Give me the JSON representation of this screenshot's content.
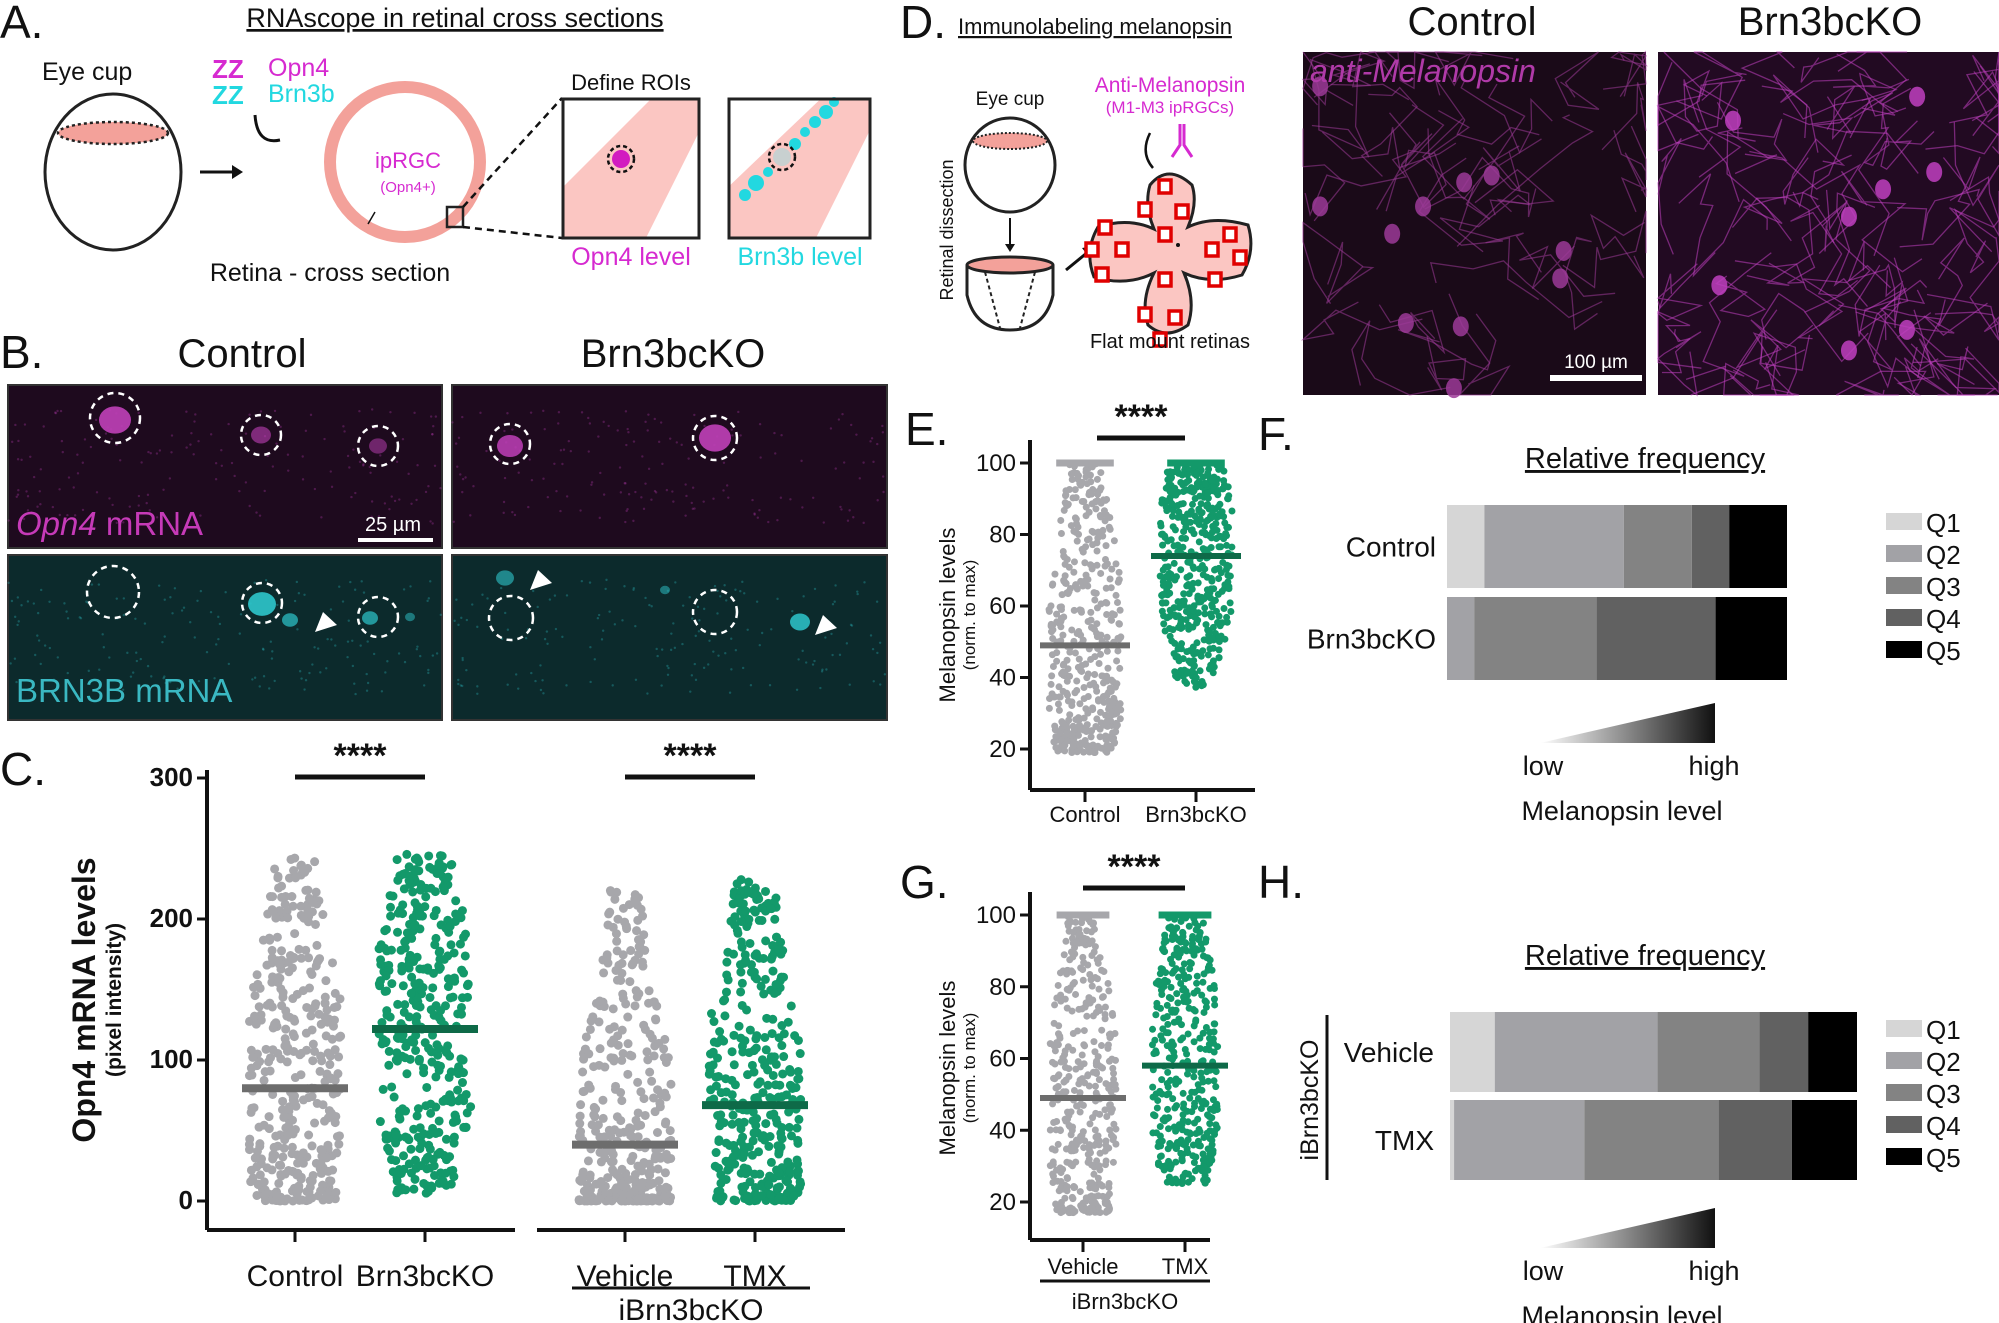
{
  "colors": {
    "control": "#a7a7ab",
    "control_median": "#6d6d6d",
    "ko": "#13996a",
    "ko_median": "#0e6a48",
    "magenta": "#d62ad0",
    "cyan": "#22d8e0",
    "salmon": "#f3a19a",
    "roi_red": "#e00000"
  },
  "panelA": {
    "label": "A.",
    "title": "RNAscope in retinal cross sections",
    "eye_cup": "Eye cup",
    "probe_opn4": "Opn4",
    "probe_brn3b": "Brn3b",
    "probe_glyph": "ZZ",
    "iprgc": "ipRGC",
    "iprgc_sub": "(Opn4+)",
    "retina": "Retina - cross section",
    "define_rois": "Define ROIs",
    "opn4_level": "Opn4 level",
    "brn3b_level": "Brn3b level"
  },
  "panelB": {
    "label": "B.",
    "col_control": "Control",
    "col_ko": "Brn3bcKO",
    "opn4_italic": "Opn4",
    "opn4_rest": " mRNA",
    "brn3b": "BRN3B mRNA",
    "scalebar": "25 µm"
  },
  "panelD": {
    "label": "D.",
    "title": "Immunolabeling melanopsin",
    "eye_cup": "Eye cup",
    "retinal_dissection": "Retinal dissection",
    "antibody": "Anti-Melanopsin",
    "antibody_sub": "(M1-M3 ipRGCs)",
    "flat_mount": "Flat mount retinas",
    "col_control": "Control",
    "col_ko": "Brn3bcKO",
    "stain": "anti-Melanopsin",
    "scalebar": "100 µm"
  },
  "chart_data": [
    {
      "panel": "C.",
      "type": "scatter",
      "ylabel": "Opn4 mRNA levels",
      "ylabel_sub": "(pixel intensity)",
      "ylim": [
        0,
        300
      ],
      "yticks": [
        "0",
        "100",
        "200",
        "300"
      ],
      "groups": [
        {
          "category": "Control",
          "median": 80,
          "min": 0,
          "max": 245,
          "color": "control"
        },
        {
          "category": "Brn3bcKO",
          "median": 122,
          "min": 5,
          "max": 246,
          "color": "ko"
        },
        {
          "category": "Vehicle",
          "median": 40,
          "min": 0,
          "max": 226,
          "color": "control",
          "group": "iBrn3bcKO"
        },
        {
          "category": "TMX",
          "median": 68,
          "min": 0,
          "max": 228,
          "color": "ko",
          "group": "iBrn3bcKO"
        }
      ],
      "group_label": "iBrn3bcKO",
      "significance": [
        "****",
        "****"
      ]
    },
    {
      "panel": "E.",
      "type": "scatter",
      "ylabel": "Melanopsin levels",
      "ylabel_sub": "(norm. to max)",
      "ylim": [
        20,
        100
      ],
      "yticks": [
        "20",
        "40",
        "60",
        "80",
        "100"
      ],
      "groups": [
        {
          "category": "Control",
          "median": 49,
          "min": 19,
          "max": 100,
          "color": "control"
        },
        {
          "category": "Brn3bcKO",
          "median": 74,
          "min": 37,
          "max": 100,
          "color": "ko"
        }
      ],
      "significance": [
        "****"
      ]
    },
    {
      "panel": "F.",
      "type": "bar",
      "title": "Relative frequency",
      "stacked": true,
      "orientation": "horizontal",
      "categories": [
        "Control",
        "Brn3bcKO"
      ],
      "series": [
        {
          "name": "Q1",
          "values": [
            0.11,
            0.0
          ]
        },
        {
          "name": "Q2",
          "values": [
            0.41,
            0.08
          ]
        },
        {
          "name": "Q3",
          "values": [
            0.2,
            0.36
          ]
        },
        {
          "name": "Q4",
          "values": [
            0.11,
            0.35
          ]
        },
        {
          "name": "Q5",
          "values": [
            0.17,
            0.21
          ]
        }
      ],
      "legend": "right",
      "scale_low": "low",
      "scale_high": "high",
      "scale_label": "Melanopsin level"
    },
    {
      "panel": "G.",
      "type": "scatter",
      "ylabel": "Melanopsin levels",
      "ylabel_sub": "(norm. to max)",
      "ylim": [
        20,
        100
      ],
      "yticks": [
        "20",
        "40",
        "60",
        "80",
        "100"
      ],
      "groups": [
        {
          "category": "Vehicle",
          "median": 49,
          "min": 17,
          "max": 100,
          "color": "control"
        },
        {
          "category": "TMX",
          "median": 58,
          "min": 25,
          "max": 100,
          "color": "ko"
        }
      ],
      "group_label": "iBrn3bcKO",
      "significance": [
        "****"
      ]
    },
    {
      "panel": "H.",
      "type": "bar",
      "title": "Relative frequency",
      "stacked": true,
      "orientation": "horizontal",
      "group_label": "iBrn3bcKO",
      "categories": [
        "Vehicle",
        "TMX"
      ],
      "series": [
        {
          "name": "Q1",
          "values": [
            0.11,
            0.01
          ]
        },
        {
          "name": "Q2",
          "values": [
            0.4,
            0.32
          ]
        },
        {
          "name": "Q3",
          "values": [
            0.25,
            0.33
          ]
        },
        {
          "name": "Q4",
          "values": [
            0.12,
            0.18
          ]
        },
        {
          "name": "Q5",
          "values": [
            0.12,
            0.16
          ]
        }
      ],
      "legend": "right",
      "scale_low": "low",
      "scale_high": "high",
      "scale_label": "Melanopsin level"
    }
  ],
  "quintile_colors": [
    "#d6d6d6",
    "#a2a2a6",
    "#838383",
    "#616161",
    "#000000"
  ]
}
